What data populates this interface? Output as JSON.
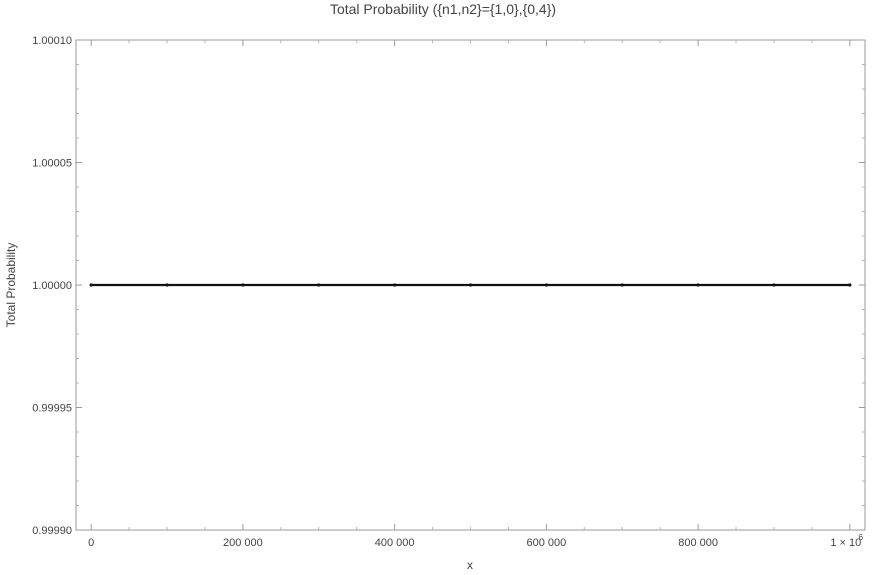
{
  "chart_data": {
    "type": "line",
    "title": "Total Probability ({n1,n2}={1,0},{0,4})",
    "xlabel": "x",
    "ylabel": "Total Probability",
    "xlim": [
      -20000,
      1020000
    ],
    "ylim": [
      0.9999,
      1.0001
    ],
    "x_ticks": [
      0,
      200000,
      400000,
      600000,
      800000,
      1000000
    ],
    "x_tick_labels": [
      "0",
      "200 000",
      "400 000",
      "600 000",
      "800 000",
      "1 × 10"
    ],
    "x_tick_exponent": "6",
    "y_ticks": [
      0.9999,
      0.99995,
      1.0,
      1.00005,
      1.0001
    ],
    "y_tick_labels": [
      "0.99990",
      "0.99995",
      "1.00000",
      "1.00005",
      "1.00010"
    ],
    "grid": false,
    "series": [
      {
        "x": [
          0,
          100000,
          200000,
          300000,
          400000,
          500000,
          600000,
          700000,
          800000,
          900000,
          1000000
        ],
        "y": [
          1.0,
          1.0,
          1.0,
          1.0,
          1.0,
          1.0,
          1.0,
          1.0,
          1.0,
          1.0,
          1.0
        ],
        "color": "#111111"
      }
    ]
  }
}
